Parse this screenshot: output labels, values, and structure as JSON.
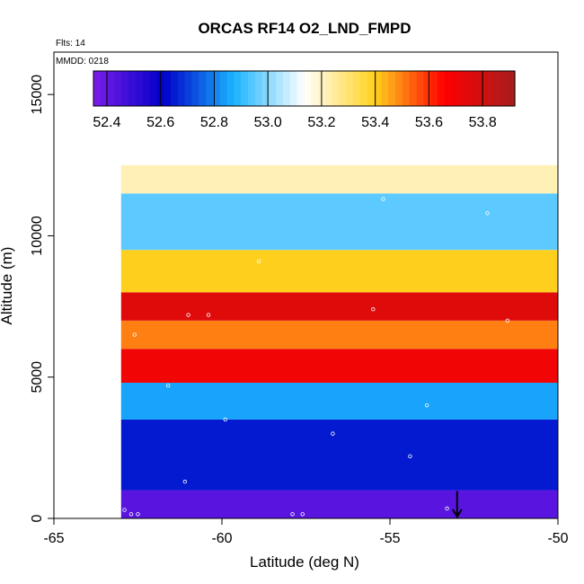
{
  "chart_data": {
    "type": "heatmap",
    "title": "ORCAS RF14 O2_LND_FMPD",
    "annotations": {
      "flights": "Flts: 14",
      "date": "MMDD: 0218"
    },
    "xlabel": "Latitude (deg N)",
    "ylabel": "Altitude (m)",
    "xlim": [
      -65,
      -50
    ],
    "ylim": [
      0,
      16500
    ],
    "x_ticks": [
      -65,
      -60,
      -55,
      -50
    ],
    "x_tick_labels": [
      "-65",
      "-60",
      "-55",
      "-50"
    ],
    "y_ticks": [
      0,
      5000,
      10000,
      15000
    ],
    "y_tick_labels": [
      "0",
      "5000",
      "10000",
      "15000"
    ],
    "colorbar": {
      "range": [
        52.35,
        53.92
      ],
      "ticks": [
        52.4,
        52.6,
        52.8,
        53.0,
        53.2,
        53.4,
        53.6,
        53.8
      ],
      "tick_labels": [
        "52.4",
        "52.6",
        "52.8",
        "53.0",
        "53.2",
        "53.4",
        "53.6",
        "53.8"
      ],
      "colors": [
        "#7a1de8",
        "#0000c8",
        "#1ab4ff",
        "#ffffff",
        "#ffd21e",
        "#ff0000",
        "#a51e1e"
      ]
    },
    "field": {
      "lat_range": [
        -63.0,
        -50.0
      ],
      "alt_range": [
        0,
        12500
      ],
      "bands": [
        {
          "alt_min": 0,
          "alt_max": 1000,
          "value": 52.42
        },
        {
          "alt_min": 1000,
          "alt_max": 3500,
          "value": 52.65
        },
        {
          "alt_min": 3500,
          "alt_max": 4800,
          "value": 52.85
        },
        {
          "alt_min": 4800,
          "alt_max": 6000,
          "value": 53.7
        },
        {
          "alt_min": 6000,
          "alt_max": 7000,
          "value": 53.5
        },
        {
          "alt_min": 7000,
          "alt_max": 8000,
          "value": 53.75
        },
        {
          "alt_min": 8000,
          "alt_max": 9500,
          "value": 53.4
        },
        {
          "alt_min": 9500,
          "alt_max": 11500,
          "value": 52.95
        },
        {
          "alt_min": 11500,
          "alt_max": 12500,
          "value": 53.22
        }
      ]
    },
    "sample_points": [
      {
        "lat": -62.9,
        "alt": 300
      },
      {
        "lat": -62.7,
        "alt": 150
      },
      {
        "lat": -62.5,
        "alt": 150
      },
      {
        "lat": -57.9,
        "alt": 150
      },
      {
        "lat": -57.6,
        "alt": 150
      },
      {
        "lat": -53.3,
        "alt": 350
      },
      {
        "lat": -62.6,
        "alt": 6500
      },
      {
        "lat": -61.0,
        "alt": 7200
      },
      {
        "lat": -60.4,
        "alt": 7200
      },
      {
        "lat": -55.5,
        "alt": 7400
      },
      {
        "lat": -51.5,
        "alt": 7000
      },
      {
        "lat": -61.6,
        "alt": 4700
      },
      {
        "lat": -59.9,
        "alt": 3500
      },
      {
        "lat": -56.7,
        "alt": 3000
      },
      {
        "lat": -53.9,
        "alt": 4000
      },
      {
        "lat": -55.2,
        "alt": 11300
      },
      {
        "lat": -52.1,
        "alt": 10800
      },
      {
        "lat": -58.9,
        "alt": 9100
      },
      {
        "lat": -54.4,
        "alt": 2200
      },
      {
        "lat": -61.1,
        "alt": 1300
      }
    ],
    "marker": {
      "lat": -53.0,
      "alt": 650,
      "label": "arrow"
    }
  }
}
